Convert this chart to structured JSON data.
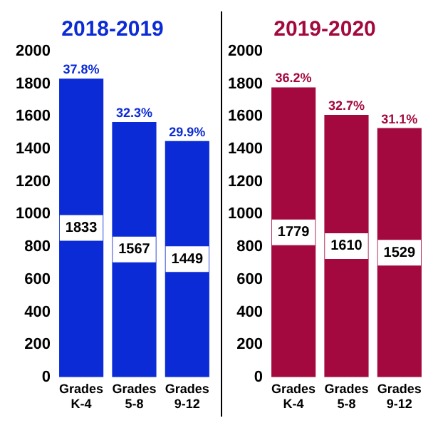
{
  "chart_data": [
    {
      "type": "bar",
      "title": "2018-2019",
      "categories": [
        "Grades K-4",
        "Grades 5-8",
        "Grades 9-12"
      ],
      "values": [
        1833,
        1567,
        1449
      ],
      "color": "#0b2bd6",
      "ylim": [
        0,
        2000
      ],
      "yticks": [
        0,
        200,
        400,
        600,
        800,
        1000,
        1200,
        1400,
        1600,
        1800,
        2000
      ],
      "grid": false,
      "data_labels": true,
      "annotations": [
        {
          "text": "37.8%",
          "x": "Grades K-4",
          "y": 1833
        },
        {
          "text": "32.3%",
          "x": "Grades 5-8",
          "y": 1567
        },
        {
          "text": "29.9%",
          "x": "Grades 9-12",
          "y": 1449
        }
      ]
    },
    {
      "type": "bar",
      "title": "2019-2020",
      "categories": [
        "Grades K-4",
        "Grades 5-8",
        "Grades 9-12"
      ],
      "values": [
        1779,
        1610,
        1529
      ],
      "color": "#a3093f",
      "ylim": [
        0,
        2000
      ],
      "yticks": [
        0,
        200,
        400,
        600,
        800,
        1000,
        1200,
        1400,
        1600,
        1800,
        2000
      ],
      "grid": false,
      "data_labels": true,
      "annotations": [
        {
          "text": "36.2%",
          "x": "Grades K-4",
          "y": 1779
        },
        {
          "text": "32.7%",
          "x": "Grades 5-8",
          "y": 1610
        },
        {
          "text": "31.1%",
          "x": "Grades 9-12",
          "y": 1529
        }
      ]
    }
  ]
}
